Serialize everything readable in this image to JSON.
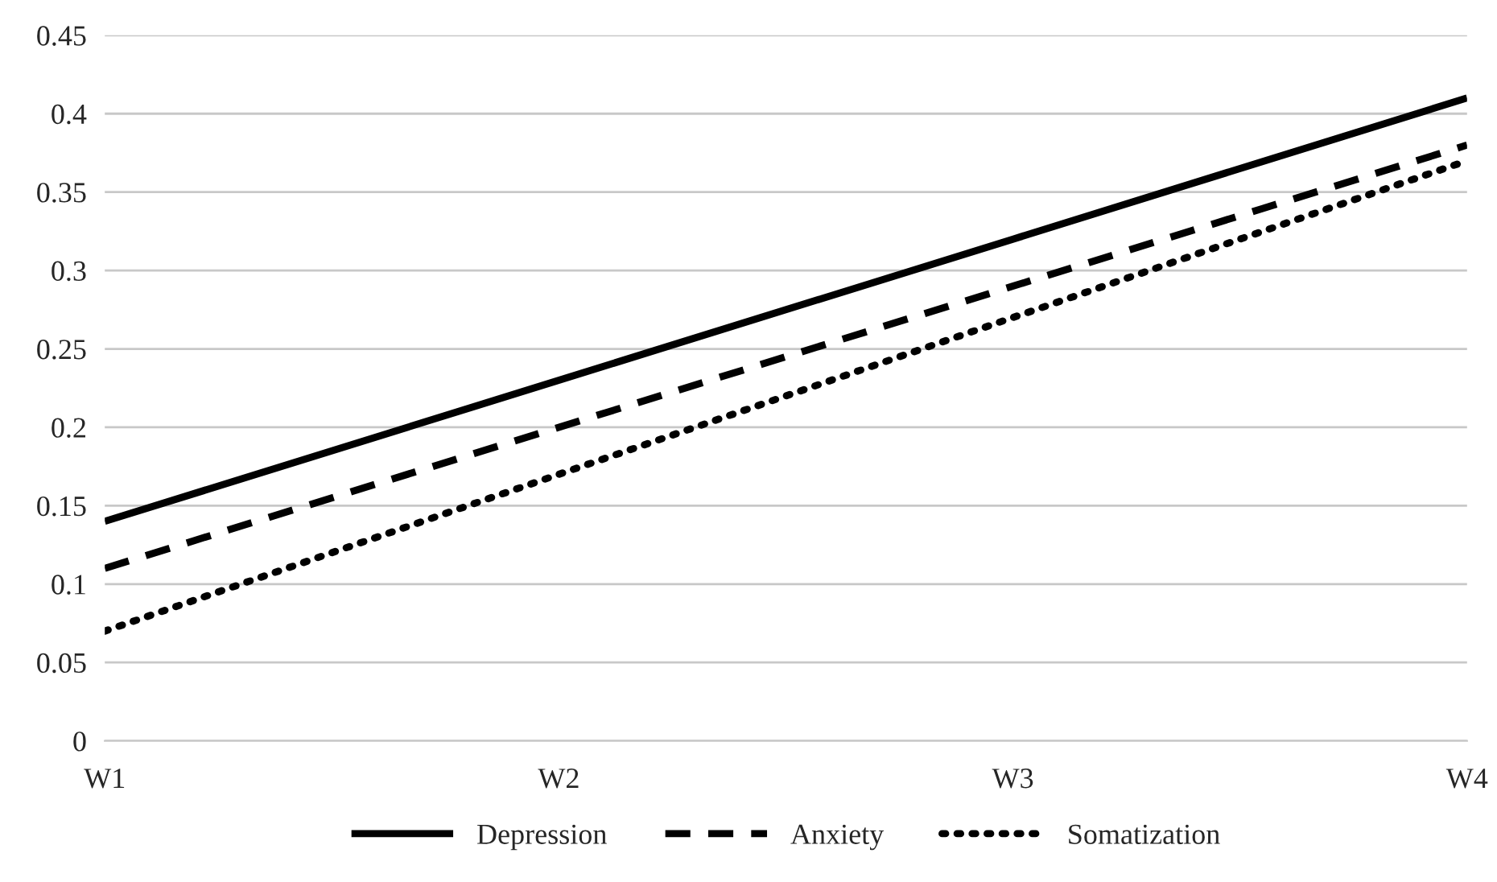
{
  "chart_data": {
    "type": "line",
    "categories": [
      "W1",
      "W2",
      "W3",
      "W4"
    ],
    "series": [
      {
        "name": "Depression",
        "color": "#000000",
        "line_style": "solid",
        "values": [
          0.14,
          0.23,
          0.32,
          0.41
        ]
      },
      {
        "name": "Anxiety",
        "color": "#000000",
        "line_style": "dashed",
        "values": [
          0.11,
          0.2,
          0.29,
          0.38
        ]
      },
      {
        "name": "Somatization",
        "color": "#000000",
        "line_style": "dotted",
        "values": [
          0.07,
          0.17,
          0.27,
          0.37
        ]
      }
    ],
    "ylim": [
      0,
      0.45
    ],
    "yticks": [
      0,
      0.05,
      0.1,
      0.15,
      0.2,
      0.25,
      0.3,
      0.35,
      0.4,
      0.45
    ],
    "grid": "y",
    "legend": "bottom",
    "marker": "none"
  }
}
